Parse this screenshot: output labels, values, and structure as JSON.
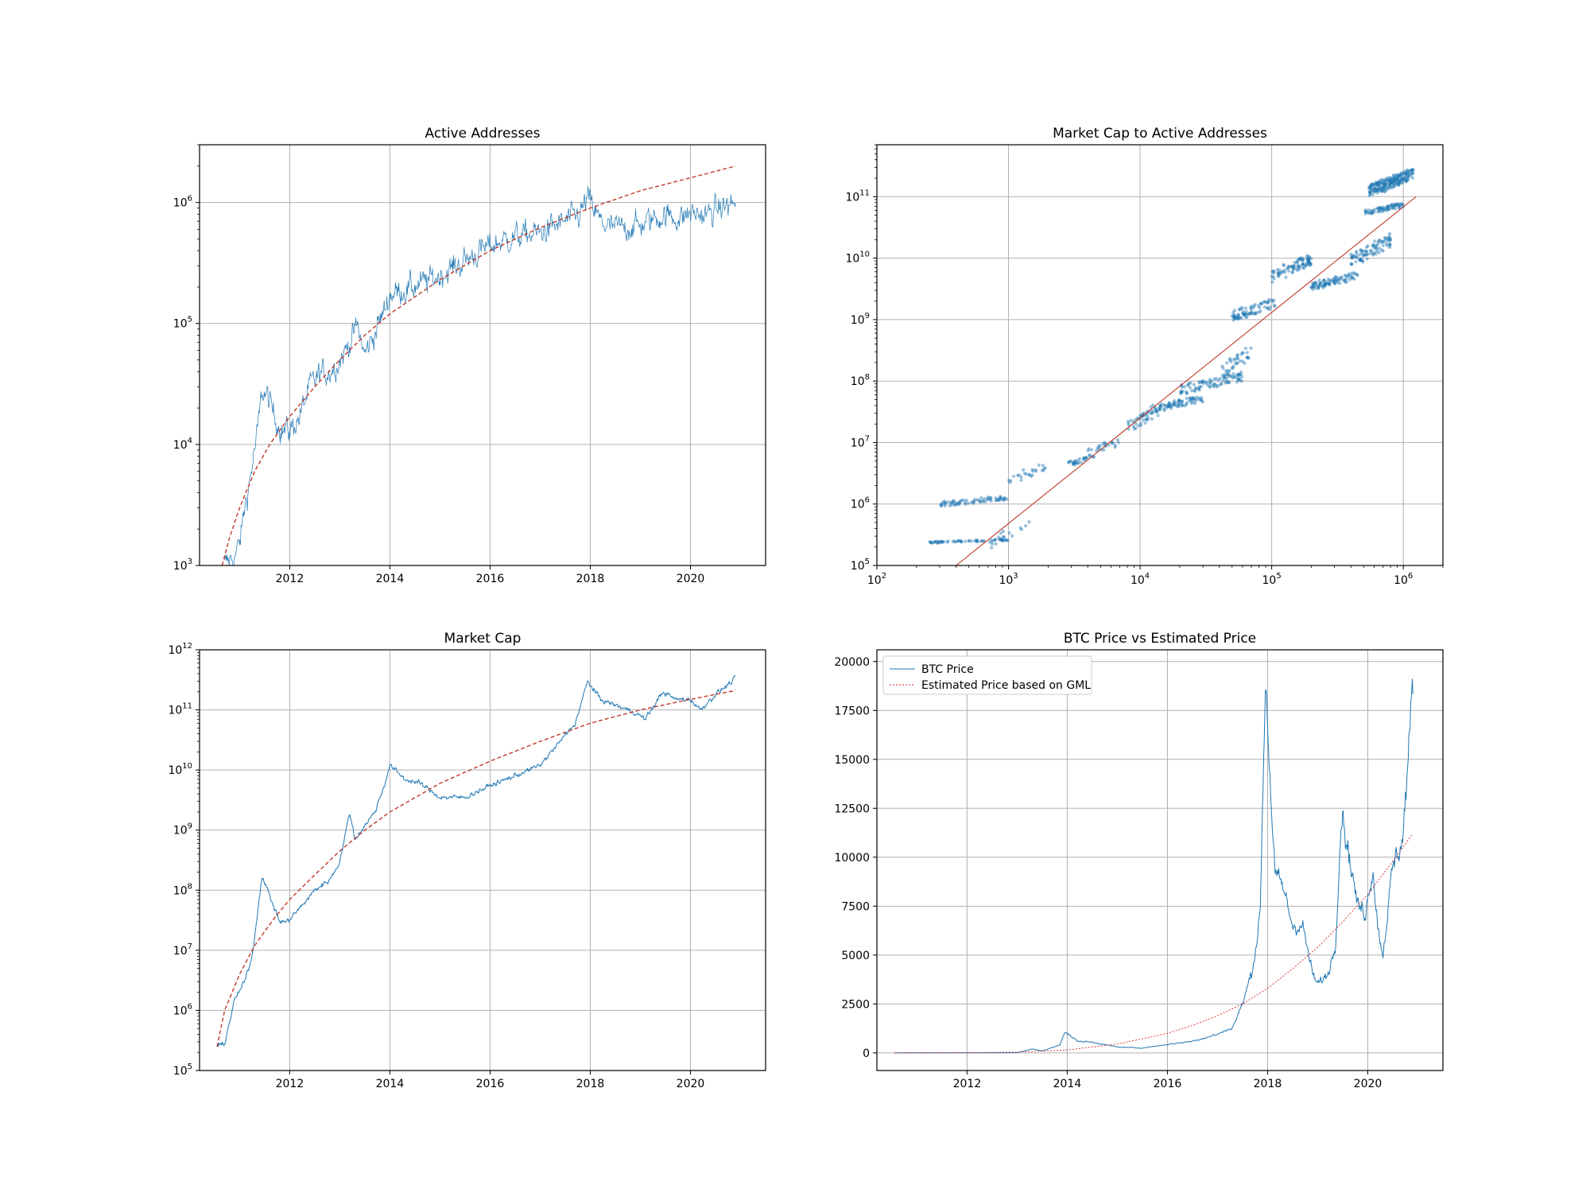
{
  "colors": {
    "series": "#1f77b4",
    "fit": "#c0392b",
    "estimate": "#d62728",
    "grid": "#b0b0b0",
    "axes": "#000000"
  },
  "chart_data": [
    {
      "type": "line",
      "title": "Active Addresses",
      "xlabel": "",
      "ylabel": "",
      "xscale": "date",
      "yscale": "log",
      "xlim": [
        2010.2,
        2021.5
      ],
      "ylim": [
        1000,
        3000000
      ],
      "xticks": [
        "2012",
        "2014",
        "2016",
        "2018",
        "2020"
      ],
      "yticks": [
        {
          "value": 1000,
          "base": "10",
          "exp": "3"
        },
        {
          "value": 10000,
          "base": "10",
          "exp": "4"
        },
        {
          "value": 100000,
          "base": "10",
          "exp": "5"
        },
        {
          "value": 1000000,
          "base": "10",
          "exp": "6"
        }
      ],
      "grid": true,
      "series": [
        {
          "role": "observed",
          "style": "solid",
          "x": [
            2010.7,
            2010.9,
            2011.0,
            2011.1,
            2011.2,
            2011.35,
            2011.45,
            2011.55,
            2011.7,
            2011.85,
            2012.0,
            2012.2,
            2012.4,
            2012.6,
            2012.8,
            2013.0,
            2013.2,
            2013.35,
            2013.5,
            2013.7,
            2013.9,
            2014.0,
            2014.3,
            2014.6,
            2015.0,
            2015.5,
            2016.0,
            2016.5,
            2017.0,
            2017.5,
            2017.8,
            2017.95,
            2018.05,
            2018.2,
            2018.4,
            2018.7,
            2019.0,
            2019.3,
            2019.5,
            2019.8,
            2020.0,
            2020.3,
            2020.6,
            2020.9
          ],
          "y": [
            1000,
            1200,
            1500,
            3000,
            5000,
            12000,
            28000,
            25000,
            17000,
            13000,
            13000,
            17000,
            30000,
            38000,
            40000,
            50000,
            70000,
            95000,
            55000,
            85000,
            130000,
            175000,
            190000,
            210000,
            250000,
            330000,
            440000,
            520000,
            560000,
            700000,
            800000,
            1100000,
            900000,
            700000,
            620000,
            620000,
            650000,
            750000,
            780000,
            740000,
            820000,
            780000,
            900000,
            1000000
          ]
        },
        {
          "role": "fit",
          "style": "dashed",
          "x": [
            2010.65,
            2010.8,
            2011.0,
            2011.3,
            2011.6,
            2012.0,
            2012.5,
            2013.0,
            2013.5,
            2014.0,
            2015.0,
            2016.0,
            2017.0,
            2018.0,
            2019.0,
            2020.0,
            2020.9
          ],
          "y": [
            1000,
            1700,
            3000,
            6000,
            10000,
            17000,
            30000,
            50000,
            80000,
            120000,
            230000,
            400000,
            620000,
            900000,
            1250000,
            1600000,
            2000000
          ]
        }
      ]
    },
    {
      "type": "scatter",
      "title": "Market Cap to Active Addresses",
      "xlabel": "",
      "ylabel": "",
      "xscale": "log",
      "yscale": "log",
      "xlim": [
        100,
        2000000
      ],
      "ylim": [
        100000,
        700000000000
      ],
      "xticks": [
        {
          "value": 100,
          "base": "10",
          "exp": "2"
        },
        {
          "value": 1000,
          "base": "10",
          "exp": "3"
        },
        {
          "value": 10000,
          "base": "10",
          "exp": "4"
        },
        {
          "value": 100000,
          "base": "10",
          "exp": "5"
        },
        {
          "value": 1000000,
          "base": "10",
          "exp": "6"
        }
      ],
      "yticks": [
        {
          "value": 100000,
          "base": "10",
          "exp": "5"
        },
        {
          "value": 1000000,
          "base": "10",
          "exp": "6"
        },
        {
          "value": 10000000,
          "base": "10",
          "exp": "7"
        },
        {
          "value": 100000000,
          "base": "10",
          "exp": "8"
        },
        {
          "value": 1000000000,
          "base": "10",
          "exp": "9"
        },
        {
          "value": 10000000000,
          "base": "10",
          "exp": "10"
        },
        {
          "value": 100000000000,
          "base": "10",
          "exp": "11"
        }
      ],
      "grid": true,
      "clusters": [
        {
          "x": [
            250,
            1000
          ],
          "y": [
            230000,
            270000
          ],
          "n": 60
        },
        {
          "x": [
            300,
            1000
          ],
          "y": [
            900000,
            1400000
          ],
          "n": 70
        },
        {
          "x": [
            700,
            1500
          ],
          "y": [
            180000,
            600000
          ],
          "n": 20
        },
        {
          "x": [
            1000,
            2000
          ],
          "y": [
            2000000,
            5000000
          ],
          "n": 25
        },
        {
          "x": [
            2800,
            4500
          ],
          "y": [
            4000000,
            6500000
          ],
          "n": 30
        },
        {
          "x": [
            4000,
            7000
          ],
          "y": [
            6000000,
            12000000
          ],
          "n": 25
        },
        {
          "x": [
            8000,
            14000
          ],
          "y": [
            15000000,
            40000000
          ],
          "n": 45
        },
        {
          "x": [
            12000,
            30000
          ],
          "y": [
            30000000,
            60000000
          ],
          "n": 80
        },
        {
          "x": [
            20000,
            60000
          ],
          "y": [
            60000000,
            140000000
          ],
          "n": 90
        },
        {
          "x": [
            40000,
            70000
          ],
          "y": [
            100000000,
            400000000
          ],
          "n": 40
        },
        {
          "x": [
            50000,
            110000
          ],
          "y": [
            900000000,
            2500000000
          ],
          "n": 80
        },
        {
          "x": [
            100000,
            200000
          ],
          "y": [
            4000000000,
            12000000000
          ],
          "n": 90
        },
        {
          "x": [
            200000,
            450000
          ],
          "y": [
            3000000000,
            6000000000
          ],
          "n": 90
        },
        {
          "x": [
            400000,
            800000
          ],
          "y": [
            7000000000,
            25000000000
          ],
          "n": 90
        },
        {
          "x": [
            500000,
            1000000
          ],
          "y": [
            50000000000,
            80000000000
          ],
          "n": 70
        },
        {
          "x": [
            550000,
            1200000
          ],
          "y": [
            100000000000,
            300000000000
          ],
          "n": 220
        }
      ],
      "series": [
        {
          "role": "fit",
          "style": "solid",
          "x": [
            400,
            1250000
          ],
          "y": [
            100000,
            100000000000
          ]
        }
      ]
    },
    {
      "type": "line",
      "title": "Market Cap",
      "xlabel": "",
      "ylabel": "",
      "xscale": "date",
      "yscale": "log",
      "xlim": [
        2010.2,
        2021.5
      ],
      "ylim": [
        100000,
        1000000000000
      ],
      "xticks": [
        "2012",
        "2014",
        "2016",
        "2018",
        "2020"
      ],
      "yticks": [
        {
          "value": 100000,
          "base": "10",
          "exp": "5"
        },
        {
          "value": 1000000,
          "base": "10",
          "exp": "6"
        },
        {
          "value": 10000000,
          "base": "10",
          "exp": "7"
        },
        {
          "value": 100000000,
          "base": "10",
          "exp": "8"
        },
        {
          "value": 1000000000,
          "base": "10",
          "exp": "9"
        },
        {
          "value": 10000000000,
          "base": "10",
          "exp": "10"
        },
        {
          "value": 100000000000,
          "base": "10",
          "exp": "11"
        },
        {
          "value": 1000000000000,
          "base": "10",
          "exp": "12"
        }
      ],
      "grid": true,
      "series": [
        {
          "role": "observed",
          "style": "solid",
          "x": [
            2010.55,
            2010.7,
            2010.9,
            2011.1,
            2011.25,
            2011.45,
            2011.6,
            2011.8,
            2011.95,
            2012.2,
            2012.5,
            2012.8,
            2013.0,
            2013.2,
            2013.3,
            2013.5,
            2013.7,
            2013.9,
            2014.0,
            2014.3,
            2014.6,
            2015.0,
            2015.5,
            2016.0,
            2016.5,
            2017.0,
            2017.4,
            2017.7,
            2017.95,
            2018.2,
            2018.5,
            2018.9,
            2019.1,
            2019.45,
            2019.7,
            2020.0,
            2020.2,
            2020.5,
            2020.9
          ],
          "y": [
            250000,
            280000,
            1500000,
            3000000,
            8000000,
            180000000,
            80000000,
            30000000,
            30000000,
            50000000,
            100000000,
            150000000,
            300000000,
            2000000000,
            700000000,
            1200000000,
            2000000000,
            6000000000,
            12000000000,
            7000000000,
            6000000000,
            3500000000,
            3500000000,
            5500000000,
            8000000000,
            12000000000,
            30000000000,
            60000000000,
            300000000000,
            150000000000,
            120000000000,
            90000000000,
            70000000000,
            200000000000,
            150000000000,
            150000000000,
            100000000000,
            180000000000,
            330000000000
          ]
        },
        {
          "role": "fit",
          "style": "dashed",
          "x": [
            2010.55,
            2010.7,
            2011.0,
            2011.3,
            2011.7,
            2012.0,
            2012.5,
            2013.0,
            2013.5,
            2014.0,
            2015.0,
            2016.0,
            2017.0,
            2018.0,
            2019.0,
            2020.0,
            2020.9
          ],
          "y": [
            250000,
            1000000,
            4000000,
            12000000,
            35000000,
            70000000,
            180000000,
            450000000,
            1000000000,
            2000000000,
            6000000000,
            14000000000,
            30000000000,
            60000000000,
            100000000000,
            150000000000,
            210000000000
          ]
        }
      ]
    },
    {
      "type": "line",
      "title": "BTC Price vs Estimated Price",
      "xlabel": "",
      "ylabel": "",
      "xscale": "date",
      "yscale": "linear",
      "xlim": [
        2010.2,
        2021.5
      ],
      "ylim": [
        -900,
        20600
      ],
      "xticks": [
        "2012",
        "2014",
        "2016",
        "2018",
        "2020"
      ],
      "yticks": [
        {
          "value": 0,
          "label": "0"
        },
        {
          "value": 2500,
          "label": "2500"
        },
        {
          "value": 5000,
          "label": "5000"
        },
        {
          "value": 7500,
          "label": "7500"
        },
        {
          "value": 10000,
          "label": "10000"
        },
        {
          "value": 12500,
          "label": "12500"
        },
        {
          "value": 15000,
          "label": "15000"
        },
        {
          "value": 17500,
          "label": "17500"
        },
        {
          "value": 20000,
          "label": "20000"
        }
      ],
      "grid": true,
      "legend": "top-left",
      "series": [
        {
          "name": "BTC Price",
          "role": "observed",
          "style": "solid",
          "x": [
            2010.55,
            2011.0,
            2012.0,
            2013.0,
            2013.3,
            2013.5,
            2013.85,
            2013.95,
            2014.2,
            2014.5,
            2015.0,
            2015.5,
            2016.0,
            2016.5,
            2017.0,
            2017.3,
            2017.5,
            2017.7,
            2017.85,
            2017.96,
            2018.05,
            2018.15,
            2018.3,
            2018.5,
            2018.7,
            2018.9,
            2019.0,
            2019.2,
            2019.35,
            2019.48,
            2019.6,
            2019.8,
            2019.95,
            2020.1,
            2020.2,
            2020.3,
            2020.5,
            2020.7,
            2020.9
          ],
          "y": [
            0,
            1,
            5,
            13,
            200,
            100,
            400,
            1100,
            600,
            550,
            300,
            250,
            430,
            600,
            950,
            1300,
            2500,
            4300,
            7000,
            19500,
            14000,
            9000,
            8500,
            6500,
            6500,
            4000,
            3500,
            4000,
            5500,
            12500,
            10500,
            7500,
            7200,
            9500,
            6500,
            5000,
            9500,
            11000,
            18700
          ]
        },
        {
          "name": "Estimated Price based on GML",
          "role": "fit",
          "style": "dotted",
          "x": [
            2010.55,
            2012.0,
            2013.0,
            2014.0,
            2015.0,
            2016.0,
            2016.5,
            2017.0,
            2017.5,
            2018.0,
            2018.5,
            2019.0,
            2019.5,
            2020.0,
            2020.5,
            2020.9
          ],
          "y": [
            0,
            10,
            40,
            150,
            450,
            1000,
            1400,
            1900,
            2500,
            3300,
            4300,
            5400,
            6700,
            8100,
            9800,
            11200
          ]
        }
      ]
    }
  ]
}
